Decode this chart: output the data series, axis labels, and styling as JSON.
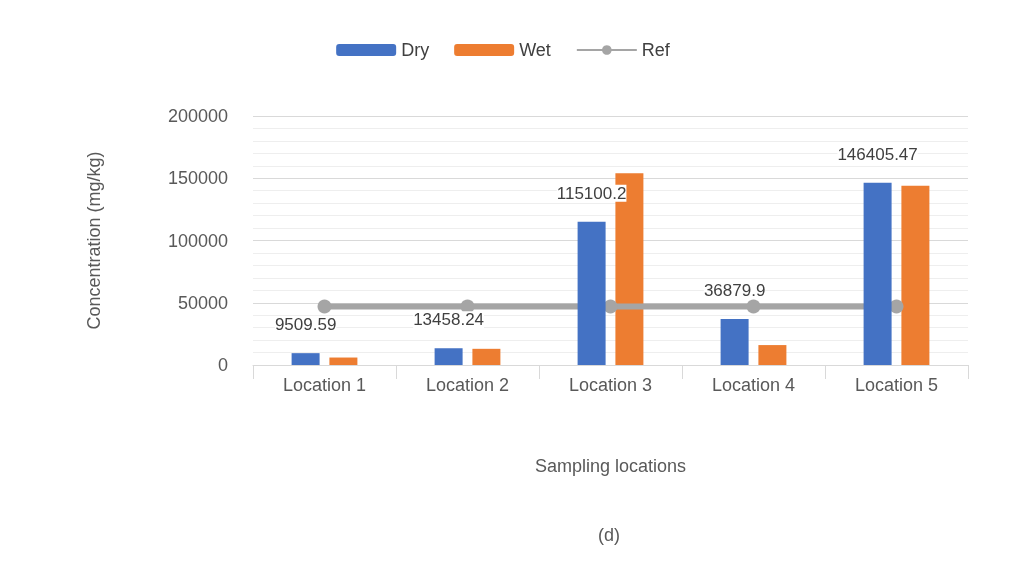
{
  "chart_data": {
    "type": "bar",
    "xlabel": "Sampling locations",
    "ylabel": "Concentration (mg/kg)",
    "annotations": [
      "(d)"
    ],
    "categories": [
      "Location 1",
      "Location 2",
      "Location 3",
      "Location 4",
      "Location 5"
    ],
    "series": [
      {
        "name": "Dry",
        "color": "#4472c4",
        "values": [
          9509.59,
          13458.24,
          115100.2,
          36879.9,
          146405.47
        ],
        "value_labels": [
          "9509.59",
          "13458.24",
          "115100.2",
          "36879.9",
          "146405.47"
        ]
      },
      {
        "name": "Wet",
        "color": "#ed7d31",
        "values": [
          6000,
          13000,
          154000,
          16000,
          144000
        ]
      },
      {
        "name": "Ref",
        "type": "line",
        "color": "#a5a5a5",
        "marker": "circle",
        "values": [
          47000,
          47000,
          47000,
          47000,
          47000
        ]
      }
    ],
    "ylim": [
      0,
      200000
    ],
    "yticks": [
      0,
      50000,
      100000,
      150000,
      200000
    ],
    "grid": "y",
    "legend": "top"
  }
}
